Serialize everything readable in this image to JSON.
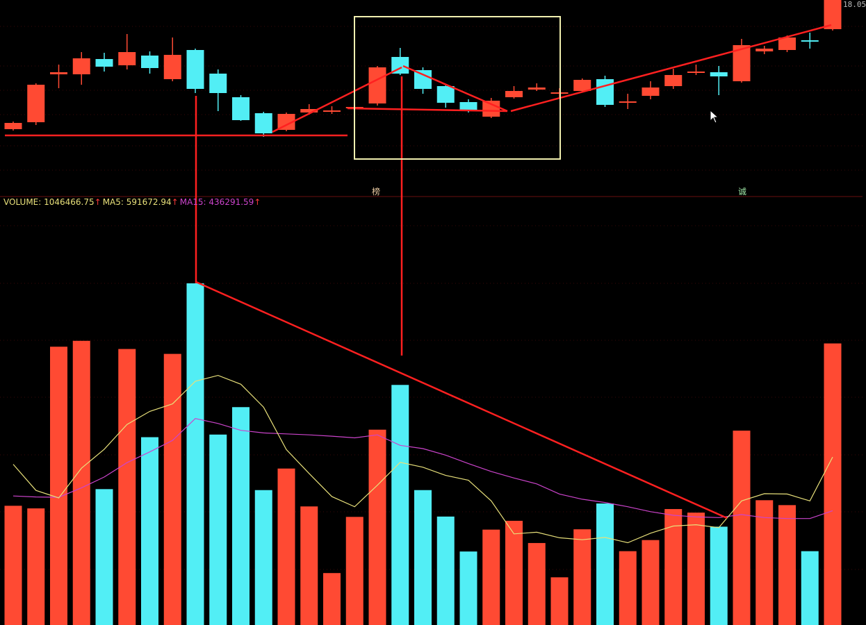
{
  "price_tag": "18.05",
  "legend": {
    "volume_label": "VOLUME: 1046466.75",
    "ma5_label": "MA5: 591672.94",
    "ma15_label": "MA15: 436291.59",
    "arrow": "↑",
    "volume_color": "#e8e07a",
    "ma5_color": "#e8e07a",
    "ma15_color": "#cc44cc"
  },
  "markers": {
    "a": "榜",
    "b": "诚"
  },
  "colors": {
    "up": "#ff4a33",
    "down": "#52eef5",
    "annotation": "#ff2020",
    "box": "#f2f0b0",
    "divider": "#6a1010",
    "grid": "#3a0808"
  },
  "chart_data": {
    "type": "candlestick",
    "candles": [
      {
        "open": 6,
        "close": 15,
        "high": 17,
        "low": 4
      },
      {
        "open": 16,
        "close": 70,
        "high": 72,
        "low": 12
      },
      {
        "open": 85,
        "close": 88,
        "high": 99,
        "low": 65
      },
      {
        "open": 85,
        "close": 108,
        "high": 117,
        "low": 70
      },
      {
        "open": 107,
        "close": 96,
        "high": 116,
        "low": 89
      },
      {
        "open": 98,
        "close": 117,
        "high": 143,
        "low": 92
      },
      {
        "open": 112,
        "close": 94,
        "high": 118,
        "low": 86
      },
      {
        "open": 78,
        "close": 113,
        "high": 138,
        "low": 75
      },
      {
        "open": 120,
        "close": 64,
        "high": 122,
        "low": 58
      },
      {
        "open": 86,
        "close": 58,
        "high": 92,
        "low": 32
      },
      {
        "open": 52,
        "close": 19,
        "high": 55,
        "low": 18
      },
      {
        "open": 29,
        "close": 0,
        "high": 31,
        "low": -5
      },
      {
        "open": 5,
        "close": 28,
        "high": 30,
        "low": 3
      },
      {
        "open": 30,
        "close": 35,
        "high": 42,
        "low": 27
      },
      {
        "open": 32,
        "close": 33,
        "high": 39,
        "low": 28
      },
      {
        "open": 37,
        "close": 38,
        "high": 41,
        "low": 35
      },
      {
        "open": 43,
        "close": 95,
        "high": 97,
        "low": 40
      },
      {
        "open": 110,
        "close": 86,
        "high": 123,
        "low": 84
      },
      {
        "open": 91,
        "close": 64,
        "high": 95,
        "low": 57
      },
      {
        "open": 68,
        "close": 44,
        "high": 69,
        "low": 37
      },
      {
        "open": 45,
        "close": 34,
        "high": 49,
        "low": 30
      },
      {
        "open": 24,
        "close": 47,
        "high": 51,
        "low": 22
      },
      {
        "open": 52,
        "close": 61,
        "high": 68,
        "low": 50
      },
      {
        "open": 63,
        "close": 66,
        "high": 72,
        "low": 61
      },
      {
        "open": 59,
        "close": 59,
        "high": 65,
        "low": 52
      },
      {
        "open": 61,
        "close": 77,
        "high": 79,
        "low": 59
      },
      {
        "open": 78,
        "close": 41,
        "high": 83,
        "low": 38
      },
      {
        "open": 46,
        "close": 46,
        "high": 57,
        "low": 35
      },
      {
        "open": 54,
        "close": 66,
        "high": 75,
        "low": 49
      },
      {
        "open": 68,
        "close": 84,
        "high": 93,
        "low": 64
      },
      {
        "open": 87,
        "close": 89,
        "high": 99,
        "low": 84
      },
      {
        "open": 88,
        "close": 82,
        "high": 97,
        "low": 55
      },
      {
        "open": 75,
        "close": 127,
        "high": 136,
        "low": 73
      },
      {
        "open": 118,
        "close": 122,
        "high": 126,
        "low": 114
      },
      {
        "open": 120,
        "close": 138,
        "high": 141,
        "low": 117
      },
      {
        "open": 134,
        "close": 133,
        "high": 145,
        "low": 122
      },
      {
        "open": 150,
        "close": 194,
        "high": 198,
        "low": 148
      }
    ],
    "volume": [
      365,
      357,
      852,
      870,
      416,
      845,
      575,
      830,
      1046,
      583,
      667,
      413,
      479,
      363,
      159,
      331,
      598,
      735,
      413,
      332,
      225,
      292,
      319,
      251,
      146,
      293,
      372,
      226,
      260,
      355,
      344,
      301,
      595,
      382,
      367,
      226,
      862
    ],
    "ma5": [
      492,
      412,
      389,
      480,
      538,
      614,
      654,
      677,
      746,
      764,
      737,
      667,
      537,
      464,
      393,
      362,
      428,
      498,
      483,
      458,
      443,
      380,
      279,
      284,
      267,
      261,
      268,
      252,
      281,
      303,
      307,
      298,
      380,
      402,
      401,
      380,
      514
    ],
    "ma15": [
      395,
      392,
      391,
      420,
      453,
      497,
      530,
      565,
      632,
      617,
      596,
      588,
      585,
      582,
      578,
      573,
      582,
      550,
      540,
      520,
      494,
      470,
      450,
      432,
      401,
      385,
      375,
      362,
      347,
      336,
      331,
      329,
      338,
      329,
      326,
      326,
      350
    ],
    "volume_ylim": [
      0,
      1300
    ]
  }
}
